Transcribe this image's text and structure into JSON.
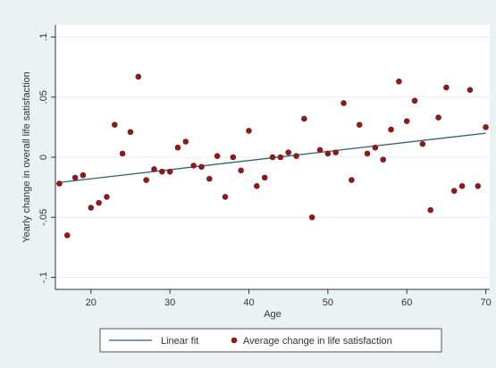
{
  "chart_data": {
    "type": "scatter",
    "title": "",
    "xlabel": "Age",
    "ylabel": "Yearly change in overall life satisfaction",
    "xlim": [
      15.5,
      70.5
    ],
    "ylim": [
      -0.11,
      0.11
    ],
    "x_ticks": [
      20,
      30,
      40,
      50,
      60,
      70
    ],
    "x_tick_labels": [
      "20",
      "30",
      "40",
      "50",
      "60",
      "70"
    ],
    "y_ticks": [
      -0.1,
      -0.05,
      0,
      0.05,
      0.1
    ],
    "y_tick_labels": [
      "-.1",
      "-.05",
      "0",
      ".05",
      ".1"
    ],
    "grid": true,
    "legend_position": "bottom",
    "series": [
      {
        "name": "Linear fit",
        "kind": "line",
        "color": "#2c5f7c",
        "x": [
          16,
          70
        ],
        "y": [
          -0.021,
          0.02
        ]
      },
      {
        "name": "Average change in life satisfaction",
        "kind": "scatter",
        "color": "#8b1a1a",
        "x": [
          16,
          17,
          18,
          19,
          20,
          21,
          22,
          23,
          24,
          25,
          26,
          27,
          28,
          29,
          30,
          31,
          32,
          33,
          34,
          35,
          36,
          37,
          38,
          39,
          40,
          41,
          42,
          43,
          44,
          45,
          46,
          47,
          48,
          49,
          50,
          51,
          52,
          53,
          54,
          55,
          56,
          57,
          58,
          59,
          60,
          61,
          62,
          63,
          64,
          65,
          66,
          67,
          68,
          69,
          70
        ],
        "y": [
          -0.022,
          -0.065,
          -0.017,
          -0.015,
          -0.042,
          -0.038,
          -0.033,
          0.027,
          0.003,
          0.021,
          0.067,
          -0.019,
          -0.01,
          -0.012,
          -0.012,
          0.008,
          0.013,
          -0.007,
          -0.008,
          -0.018,
          0.001,
          -0.033,
          0.0,
          -0.011,
          0.022,
          -0.024,
          -0.017,
          0.0,
          0.0,
          0.004,
          0.001,
          0.032,
          -0.05,
          0.006,
          0.003,
          0.004,
          0.045,
          -0.019,
          0.027,
          0.003,
          0.008,
          -0.002,
          0.023,
          0.063,
          0.03,
          0.047,
          0.011,
          -0.044,
          0.033,
          0.058,
          -0.028,
          -0.024,
          0.056,
          -0.024,
          0.025
        ]
      }
    ]
  }
}
